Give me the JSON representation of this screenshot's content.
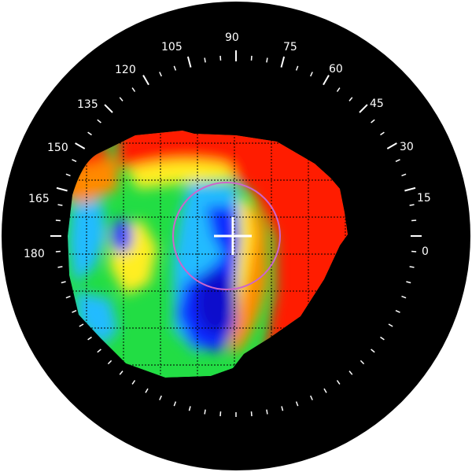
{
  "instrument": {
    "background_color": "#000000",
    "tick_color": "#ffffff",
    "label_color": "#ffffff",
    "angle_labels": [
      "0",
      "15",
      "30",
      "45",
      "60",
      "75",
      "90",
      "105",
      "120",
      "135",
      "150",
      "165",
      "180"
    ],
    "angle_label_values": [
      0,
      15,
      30,
      45,
      60,
      75,
      90,
      105,
      120,
      135,
      150,
      165,
      180
    ],
    "tick_step_degrees": 5,
    "ticks_shown_range_degrees": [
      -90,
      270
    ]
  },
  "map": {
    "palette": {
      "red": "#ff1a00",
      "orange": "#ff8a00",
      "yellow": "#ffee22",
      "green": "#22dd44",
      "cyan": "#22bbff",
      "blue": "#0a2aff",
      "dark_blue": "#0a0acc"
    },
    "grid_color": "#000000",
    "reticle_circle_color": "#cc66cc",
    "crosshair_color": "#ffffff"
  }
}
